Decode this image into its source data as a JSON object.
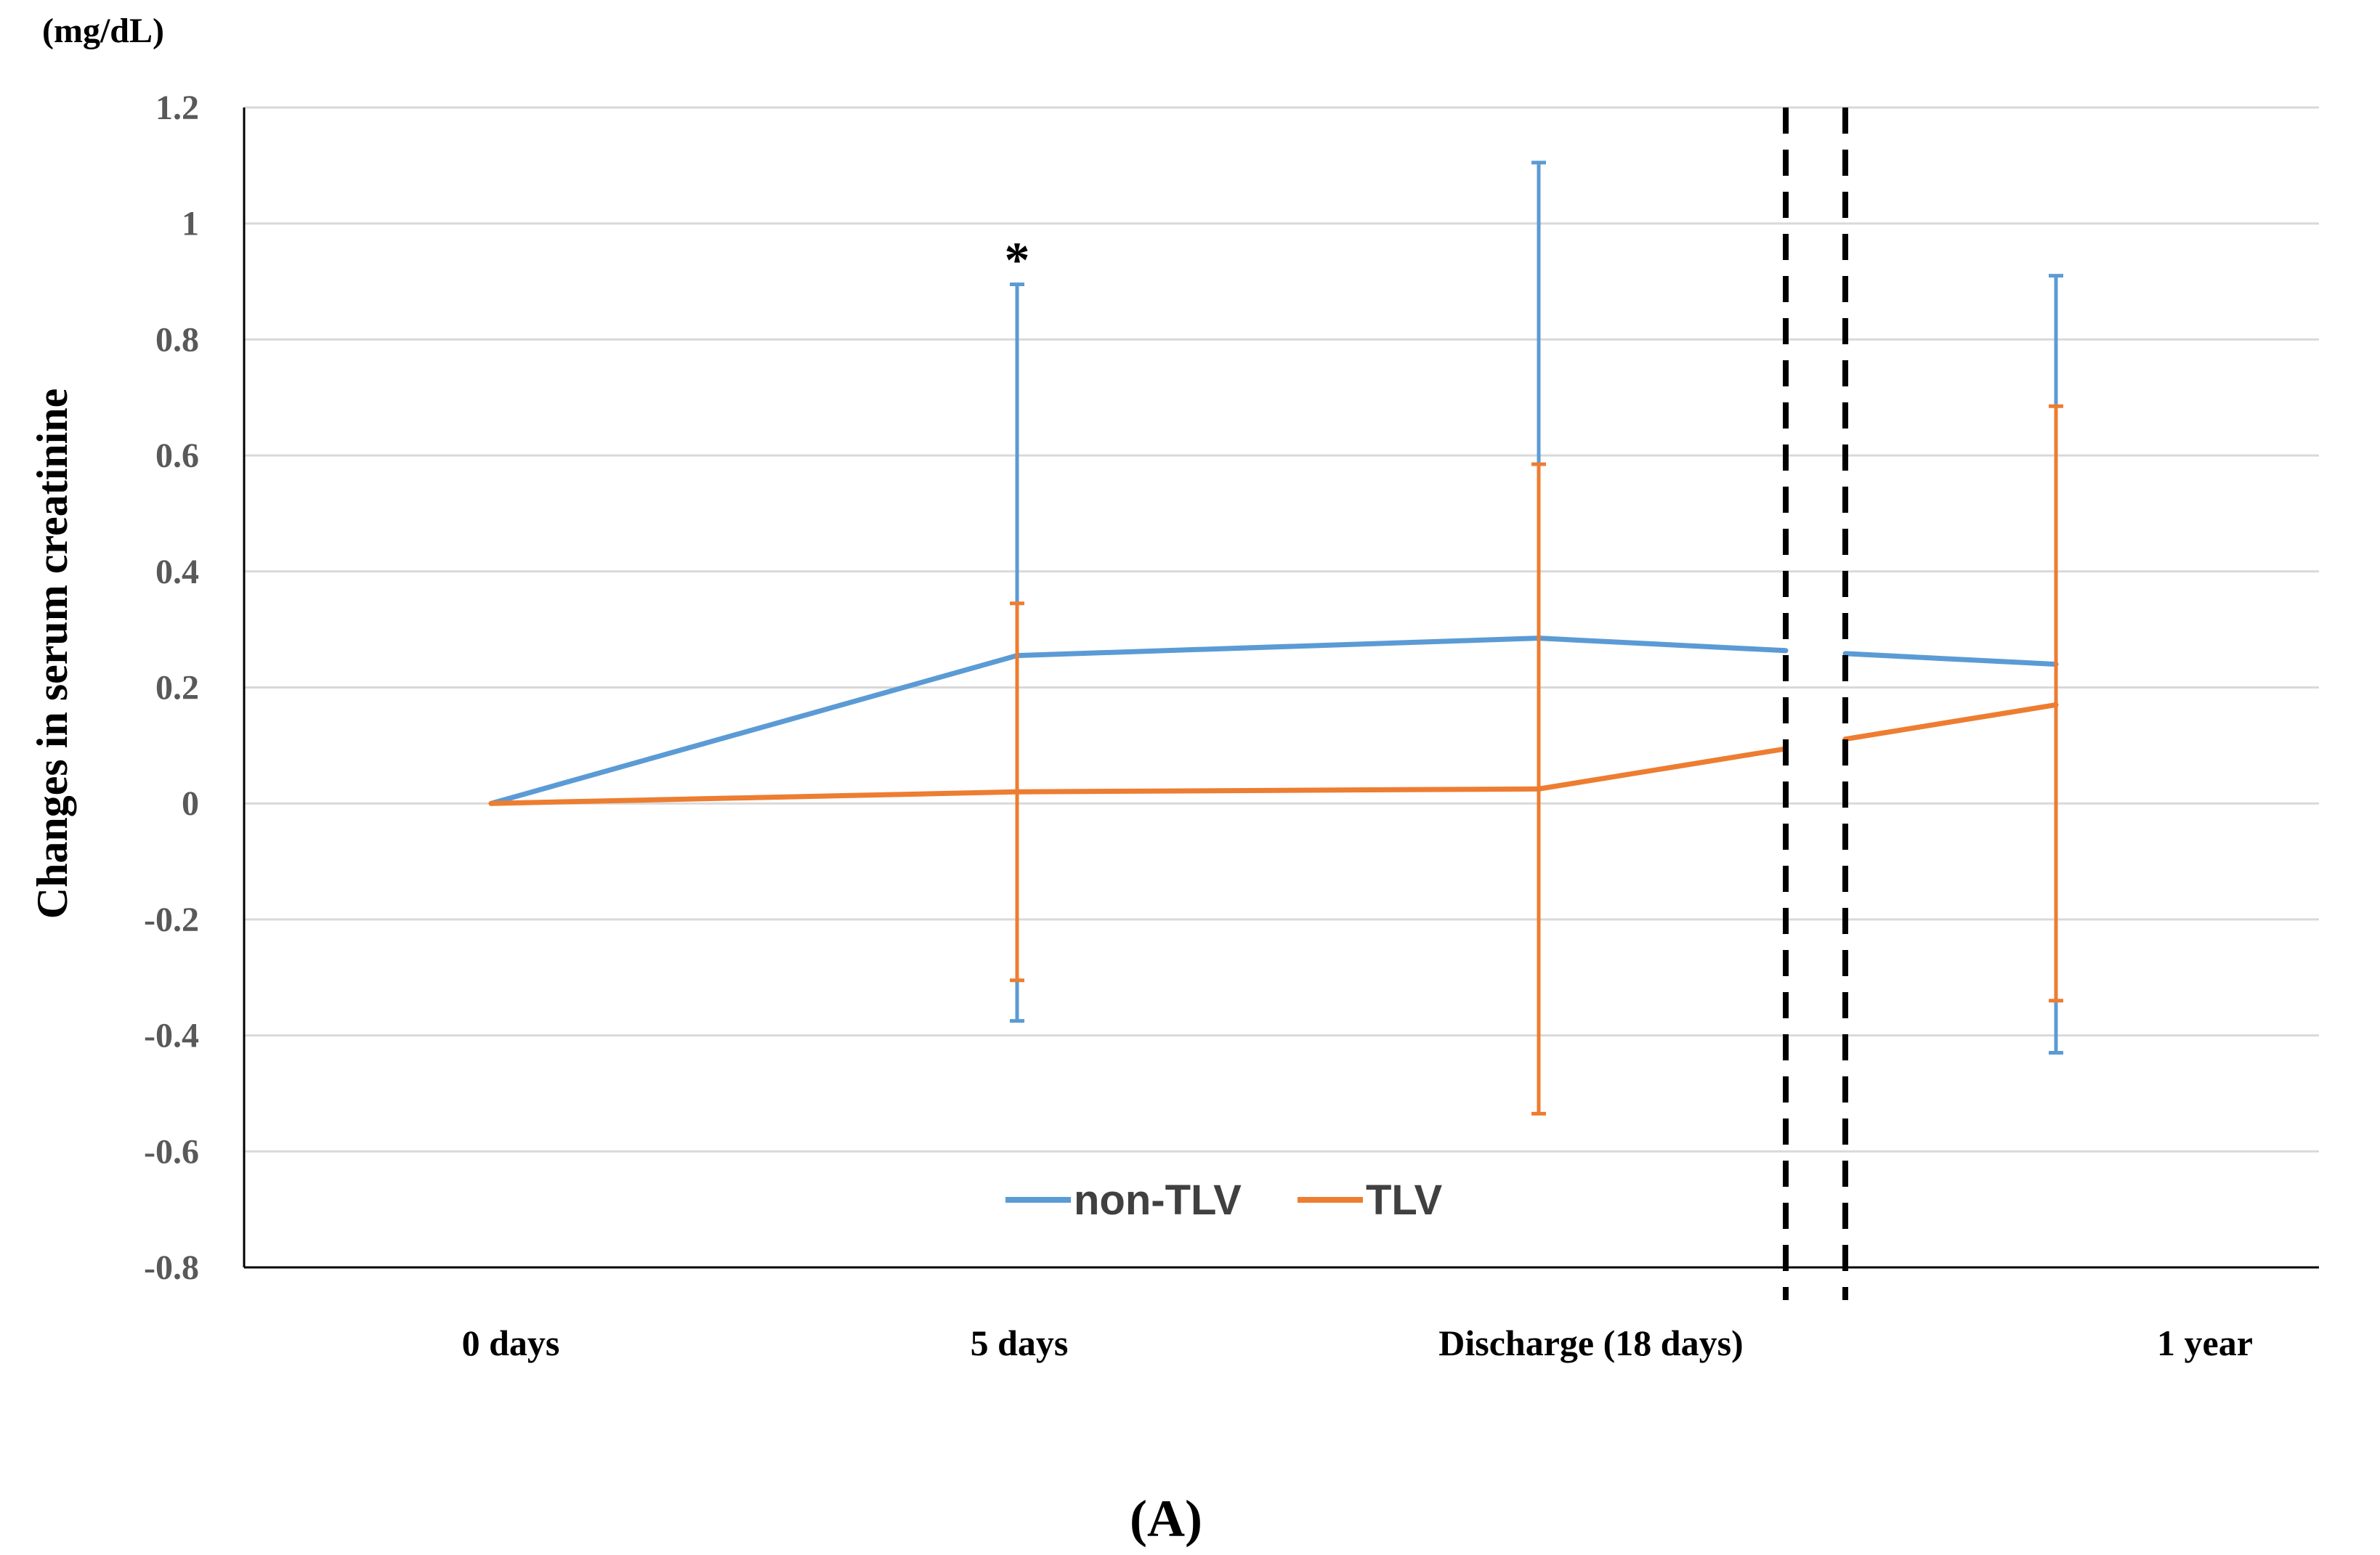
{
  "chart_data": {
    "type": "line",
    "title": "",
    "unit_label": "(mg/dL)",
    "ylabel": "Changes in serum creatinine",
    "xlabel": "",
    "categories": [
      "0 days",
      "5 days",
      "Discharge (18 days)",
      "1 year"
    ],
    "ylim": [
      -0.8,
      1.2
    ],
    "yticks": [
      1.2,
      1,
      0.8,
      0.6,
      0.4,
      0.2,
      0,
      -0.2,
      -0.4,
      -0.6,
      -0.8
    ],
    "ytick_labels": [
      "1.2",
      "1",
      "0.8",
      "0.6",
      "0.4",
      "0.2",
      "0",
      "-0.2",
      "-0.4",
      "-0.6",
      "-0.8"
    ],
    "grid": true,
    "legend_position": "bottom-center",
    "axis_break": "between Discharge (18 days) and 1 year",
    "series": [
      {
        "name": "non-TLV",
        "color": "#5B9BD5",
        "values": [
          0,
          0.255,
          0.285,
          0.24
        ],
        "error_upper": [
          null,
          0.895,
          1.105,
          0.91
        ],
        "error_lower": [
          null,
          -0.375,
          null,
          -0.43
        ]
      },
      {
        "name": "TLV",
        "color": "#ED7D31",
        "values": [
          0,
          0.02,
          0.025,
          0.17
        ],
        "error_upper": [
          null,
          0.345,
          0.585,
          0.685
        ],
        "error_lower": [
          null,
          -0.305,
          -0.535,
          -0.34
        ]
      }
    ],
    "annotations": [
      {
        "text": "*",
        "category": "5 days",
        "series": "non-TLV",
        "at": "above upper error bar"
      }
    ],
    "panel_label": "(A)"
  },
  "colors": {
    "grid": "#D9D9D9",
    "axis": "#000000",
    "break_line": "#000000"
  }
}
